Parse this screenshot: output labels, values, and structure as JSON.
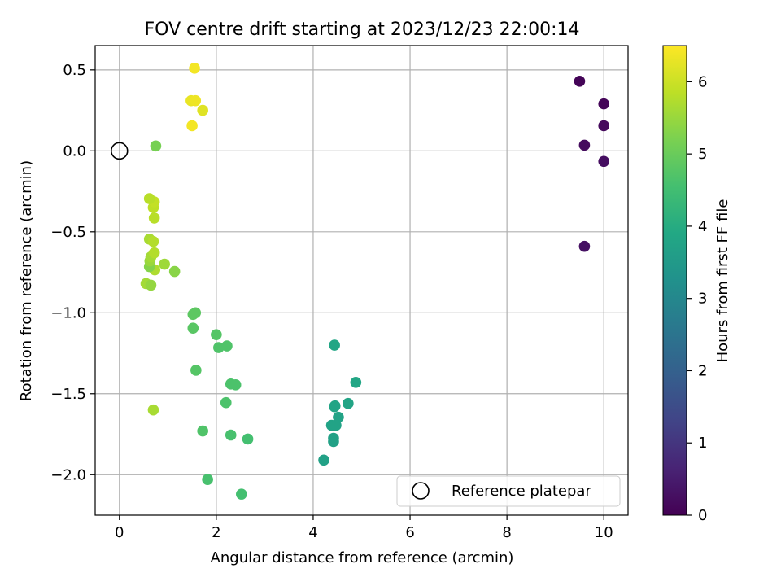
{
  "chart_data": {
    "type": "scatter",
    "title": "FOV centre drift starting at 2023/12/23 22:00:14",
    "xlabel": "Angular distance from reference (arcmin)",
    "ylabel": "Rotation from reference (arcmin)",
    "xlim": [
      -0.5,
      10.5
    ],
    "ylim": [
      -2.25,
      0.65
    ],
    "xticks": [
      0,
      2,
      4,
      6,
      8,
      10
    ],
    "xtick_labels": [
      "0",
      "2",
      "4",
      "6",
      "8",
      "10"
    ],
    "yticks": [
      -2.0,
      -1.5,
      -1.0,
      -0.5,
      0.0,
      0.5
    ],
    "ytick_labels": [
      "−2.0",
      "−1.5",
      "−1.0",
      "−0.5",
      "0.0",
      "0.5"
    ],
    "grid": true,
    "colormap": "viridis",
    "colorbar": {
      "label": "Hours from first FF file",
      "range": [
        0,
        6.5
      ],
      "ticks": [
        0,
        1,
        2,
        3,
        4,
        5,
        6
      ],
      "tick_labels": [
        "0",
        "1",
        "2",
        "3",
        "4",
        "5",
        "6"
      ]
    },
    "reference_point": {
      "x": 0,
      "y": 0
    },
    "legend": {
      "label": "Reference platepar",
      "placement": "lower right"
    },
    "points": [
      {
        "x": 9.5,
        "y": 0.43,
        "c": 0.05
      },
      {
        "x": 10.0,
        "y": 0.29,
        "c": 0.1
      },
      {
        "x": 10.0,
        "y": 0.155,
        "c": 0.15
      },
      {
        "x": 9.6,
        "y": 0.035,
        "c": 0.2
      },
      {
        "x": 10.0,
        "y": -0.065,
        "c": 0.25
      },
      {
        "x": 9.6,
        "y": -0.59,
        "c": 0.3
      },
      {
        "x": 4.22,
        "y": -1.91,
        "c": 3.7
      },
      {
        "x": 4.42,
        "y": -1.795,
        "c": 3.7
      },
      {
        "x": 4.42,
        "y": -1.775,
        "c": 3.7
      },
      {
        "x": 4.38,
        "y": -1.695,
        "c": 3.75
      },
      {
        "x": 4.47,
        "y": -1.695,
        "c": 3.75
      },
      {
        "x": 4.52,
        "y": -1.645,
        "c": 3.75
      },
      {
        "x": 4.44,
        "y": -1.58,
        "c": 3.8
      },
      {
        "x": 4.45,
        "y": -1.575,
        "c": 3.8
      },
      {
        "x": 4.72,
        "y": -1.56,
        "c": 3.8
      },
      {
        "x": 4.88,
        "y": -1.43,
        "c": 3.85
      },
      {
        "x": 4.44,
        "y": -1.2,
        "c": 3.85
      },
      {
        "x": 2.52,
        "y": -2.12,
        "c": 4.55
      },
      {
        "x": 1.82,
        "y": -2.03,
        "c": 4.6
      },
      {
        "x": 2.65,
        "y": -1.78,
        "c": 4.55
      },
      {
        "x": 2.3,
        "y": -1.755,
        "c": 4.6
      },
      {
        "x": 1.72,
        "y": -1.73,
        "c": 4.7
      },
      {
        "x": 2.2,
        "y": -1.555,
        "c": 4.65
      },
      {
        "x": 2.3,
        "y": -1.44,
        "c": 4.65
      },
      {
        "x": 2.4,
        "y": -1.445,
        "c": 4.65
      },
      {
        "x": 1.58,
        "y": -1.355,
        "c": 4.75
      },
      {
        "x": 2.05,
        "y": -1.215,
        "c": 4.7
      },
      {
        "x": 2.22,
        "y": -1.205,
        "c": 4.7
      },
      {
        "x": 2.0,
        "y": -1.135,
        "c": 4.75
      },
      {
        "x": 1.52,
        "y": -1.095,
        "c": 4.8
      },
      {
        "x": 1.52,
        "y": -1.01,
        "c": 4.85
      },
      {
        "x": 1.57,
        "y": -1.0,
        "c": 4.85
      },
      {
        "x": 0.75,
        "y": 0.03,
        "c": 5.15
      },
      {
        "x": 0.7,
        "y": -1.6,
        "c": 5.65
      },
      {
        "x": 1.14,
        "y": -0.745,
        "c": 5.35
      },
      {
        "x": 0.93,
        "y": -0.7,
        "c": 5.55
      },
      {
        "x": 0.55,
        "y": -0.82,
        "c": 5.6
      },
      {
        "x": 0.65,
        "y": -0.83,
        "c": 5.45
      },
      {
        "x": 0.73,
        "y": -0.735,
        "c": 5.7
      },
      {
        "x": 0.62,
        "y": -0.715,
        "c": 5.3
      },
      {
        "x": 0.63,
        "y": -0.68,
        "c": 5.5
      },
      {
        "x": 0.65,
        "y": -0.655,
        "c": 5.6
      },
      {
        "x": 0.72,
        "y": -0.63,
        "c": 5.75
      },
      {
        "x": 0.62,
        "y": -0.545,
        "c": 5.65
      },
      {
        "x": 0.7,
        "y": -0.56,
        "c": 5.75
      },
      {
        "x": 0.72,
        "y": -0.415,
        "c": 5.8
      },
      {
        "x": 0.7,
        "y": -0.35,
        "c": 5.85
      },
      {
        "x": 0.72,
        "y": -0.315,
        "c": 5.9
      },
      {
        "x": 0.62,
        "y": -0.295,
        "c": 5.8
      },
      {
        "x": 1.55,
        "y": 0.51,
        "c": 6.4
      },
      {
        "x": 1.48,
        "y": 0.31,
        "c": 6.3
      },
      {
        "x": 1.57,
        "y": 0.31,
        "c": 6.35
      },
      {
        "x": 1.72,
        "y": 0.25,
        "c": 6.2
      },
      {
        "x": 1.5,
        "y": 0.155,
        "c": 6.4
      }
    ]
  }
}
